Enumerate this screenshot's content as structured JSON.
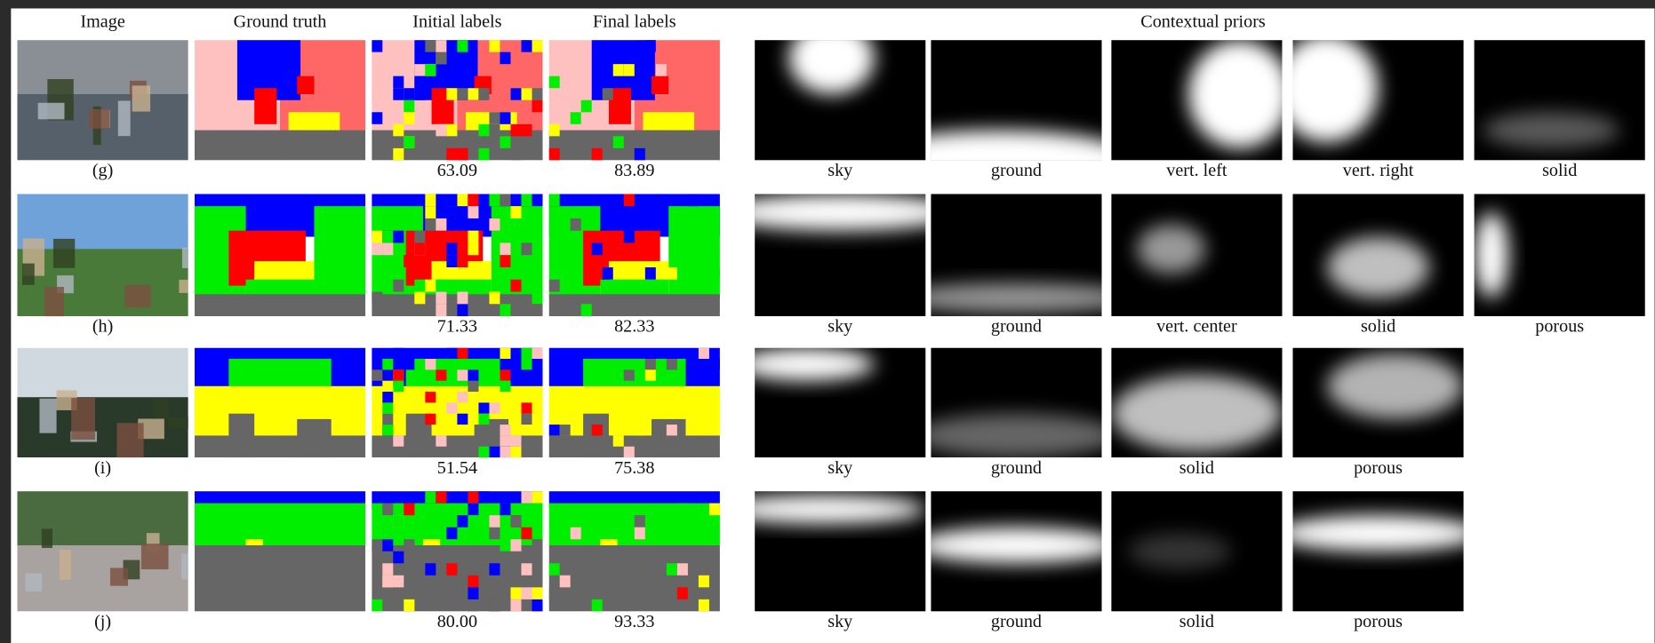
{
  "header": {
    "columns": [
      "Image",
      "Ground truth",
      "Initial labels",
      "Final labels"
    ],
    "priors_title": "Contextual priors"
  },
  "rows": [
    {
      "label": "(g)",
      "initial": "63.09",
      "final": "83.89",
      "priors": [
        "sky",
        "ground",
        "vert. left",
        "vert. right",
        "solid"
      ]
    },
    {
      "label": "(h)",
      "initial": "71.33",
      "final": "82.33",
      "priors": [
        "sky",
        "ground",
        "vert. center",
        "solid",
        "porous"
      ]
    },
    {
      "label": "(i)",
      "initial": "51.54",
      "final": "75.38",
      "priors": [
        "sky",
        "ground",
        "solid",
        "porous"
      ]
    },
    {
      "label": "(j)",
      "initial": "80.00",
      "final": "93.33",
      "priors": [
        "sky",
        "ground",
        "solid",
        "porous"
      ]
    }
  ]
}
